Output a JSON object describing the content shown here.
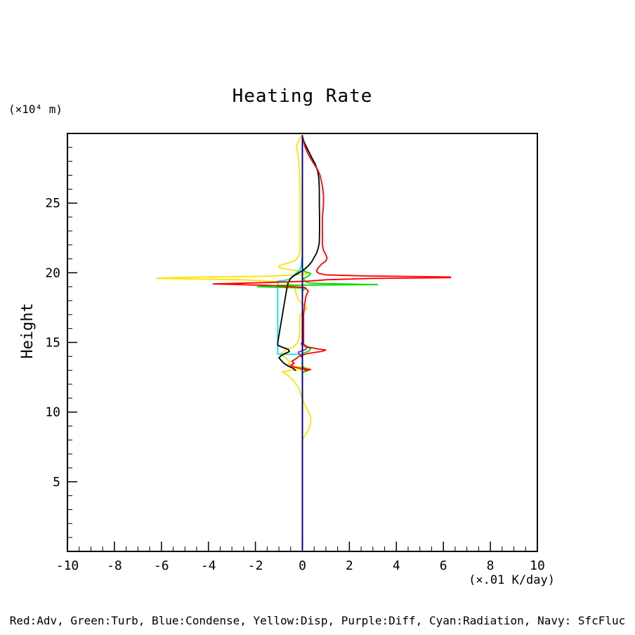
{
  "title": "Heating Rate",
  "y_axis": {
    "label": "Height",
    "unit": "(×10⁴ m)",
    "ticks": [
      5,
      10,
      15,
      20,
      25
    ],
    "range": [
      0,
      30
    ]
  },
  "x_axis": {
    "unit": "(×.01 K/day)",
    "ticks": [
      -10,
      -8,
      -6,
      -4,
      -2,
      0,
      2,
      4,
      6,
      8,
      10
    ],
    "range": [
      -10,
      10
    ]
  },
  "legend": "Red:Adv, Green:Turb, Blue:Condense, Yellow:Disp, Purple:Diff, Cyan:Radiation, Navy: SfcFluc",
  "chart_data": {
    "type": "line",
    "title": "Heating Rate",
    "xlabel": "(×.01 K/day)",
    "ylabel": "Height (×10⁴ m)",
    "xlim": [
      -10,
      10
    ],
    "ylim": [
      0,
      30
    ],
    "grid": false,
    "legend_position": "bottom caption",
    "orientation": "vertical profile: x = heating rate, y = height",
    "x_minor_step": 0.5,
    "y_minor_step": 1,
    "series": [
      {
        "name": "Disp (yellow)",
        "color": "#ffe200",
        "points": [
          [
            8.0,
            0.0
          ],
          [
            8.3,
            0.1
          ],
          [
            8.7,
            0.25
          ],
          [
            9.2,
            0.35
          ],
          [
            9.7,
            0.35
          ],
          [
            10.2,
            0.2
          ],
          [
            10.7,
            0.05
          ],
          [
            11.2,
            -0.05
          ],
          [
            11.7,
            -0.15
          ],
          [
            12.2,
            -0.35
          ],
          [
            12.6,
            -0.6
          ],
          [
            12.9,
            -0.85
          ],
          [
            13.0,
            -0.5
          ],
          [
            13.05,
            0.1
          ],
          [
            13.15,
            0.3
          ],
          [
            13.25,
            -0.2
          ],
          [
            13.4,
            -0.6
          ],
          [
            13.6,
            -0.55
          ],
          [
            13.8,
            -0.65
          ],
          [
            14.0,
            -0.8
          ],
          [
            14.2,
            -0.9
          ],
          [
            14.45,
            -0.7
          ],
          [
            14.7,
            -0.35
          ],
          [
            15.0,
            -0.2
          ],
          [
            15.5,
            -0.12
          ],
          [
            16.0,
            -0.1
          ],
          [
            16.5,
            -0.12
          ],
          [
            17.0,
            -0.1
          ],
          [
            17.2,
            0.05
          ],
          [
            17.45,
            0.2
          ],
          [
            17.7,
            0.05
          ],
          [
            18.0,
            -0.15
          ],
          [
            18.4,
            -0.25
          ],
          [
            18.8,
            -0.3
          ],
          [
            19.1,
            -0.4
          ],
          [
            19.35,
            -0.8
          ],
          [
            19.5,
            -2.5
          ],
          [
            19.6,
            -6.2
          ],
          [
            19.68,
            -5.0
          ],
          [
            19.75,
            -1.5
          ],
          [
            19.85,
            -0.3
          ],
          [
            19.95,
            0.25
          ],
          [
            20.05,
            0.1
          ],
          [
            20.2,
            -0.45
          ],
          [
            20.35,
            -0.95
          ],
          [
            20.5,
            -1.0
          ],
          [
            20.7,
            -0.6
          ],
          [
            20.9,
            -0.3
          ],
          [
            21.2,
            -0.15
          ],
          [
            21.6,
            -0.1
          ],
          [
            22.0,
            -0.1
          ],
          [
            23.0,
            -0.1
          ],
          [
            24.0,
            -0.1
          ],
          [
            25.0,
            -0.1
          ],
          [
            26.0,
            -0.1
          ],
          [
            27.0,
            -0.12
          ],
          [
            28.0,
            -0.15
          ],
          [
            28.6,
            -0.2
          ],
          [
            29.1,
            -0.25
          ],
          [
            29.5,
            -0.15
          ],
          [
            29.8,
            -0.05
          ]
        ]
      },
      {
        "name": "Radiation (cyan)",
        "color": "#00e5e5",
        "points": [
          [
            14.15,
            0.0
          ],
          [
            14.15,
            -1.05
          ],
          [
            19.4,
            -1.05
          ],
          [
            19.45,
            -0.75
          ],
          [
            19.55,
            -0.55
          ],
          [
            19.7,
            -0.45
          ],
          [
            19.85,
            -0.35
          ],
          [
            20.0,
            -0.25
          ],
          [
            20.2,
            -0.12
          ],
          [
            20.5,
            -0.05
          ],
          [
            20.9,
            -0.02
          ],
          [
            21.3,
            0.0
          ]
        ]
      },
      {
        "name": "Diff (purple)",
        "color": "#aa22cc",
        "points": [
          [
            13.9,
            0.0
          ],
          [
            14.1,
            -0.1
          ],
          [
            14.3,
            -0.18
          ],
          [
            14.5,
            0.15
          ],
          [
            14.7,
            0.2
          ],
          [
            14.9,
            -0.05
          ],
          [
            15.1,
            0.05
          ],
          [
            15.4,
            0.0
          ]
        ]
      },
      {
        "name": "Turb (green)",
        "color": "#00dd00",
        "points": [
          [
            12.85,
            0.0
          ],
          [
            12.95,
            0.2
          ],
          [
            13.05,
            0.3
          ],
          [
            13.15,
            0.1
          ],
          [
            13.3,
            0.0
          ],
          [
            14.2,
            0.0
          ],
          [
            14.4,
            0.3
          ],
          [
            14.55,
            0.35
          ],
          [
            14.7,
            0.1
          ],
          [
            14.9,
            0.0
          ],
          [
            18.7,
            0.0
          ],
          [
            18.9,
            0.15
          ],
          [
            19.0,
            -1.9
          ],
          [
            19.1,
            -1.0
          ],
          [
            19.15,
            3.2
          ],
          [
            19.25,
            0.3
          ],
          [
            19.4,
            0.1
          ],
          [
            19.6,
            0.05
          ],
          [
            19.8,
            0.3
          ],
          [
            19.95,
            0.35
          ],
          [
            20.1,
            0.1
          ],
          [
            20.3,
            0.0
          ]
        ]
      },
      {
        "name": "unlabeled total (black)",
        "color": "#000000",
        "points": [
          [
            13.0,
            -0.3
          ],
          [
            13.15,
            -0.4
          ],
          [
            13.3,
            -0.6
          ],
          [
            13.5,
            -0.78
          ],
          [
            13.7,
            -0.9
          ],
          [
            13.9,
            -1.0
          ],
          [
            14.05,
            -0.9
          ],
          [
            14.2,
            -0.75
          ],
          [
            14.35,
            -0.55
          ],
          [
            14.5,
            -0.6
          ],
          [
            14.65,
            -0.85
          ],
          [
            14.8,
            -1.05
          ],
          [
            15.0,
            -1.05
          ],
          [
            15.5,
            -1.0
          ],
          [
            16.0,
            -0.95
          ],
          [
            16.5,
            -0.9
          ],
          [
            17.0,
            -0.85
          ],
          [
            17.5,
            -0.8
          ],
          [
            18.0,
            -0.75
          ],
          [
            18.5,
            -0.7
          ],
          [
            19.0,
            -0.65
          ],
          [
            19.3,
            -0.6
          ],
          [
            19.6,
            -0.5
          ],
          [
            19.8,
            -0.35
          ],
          [
            20.0,
            -0.15
          ],
          [
            20.2,
            0.05
          ],
          [
            20.5,
            0.25
          ],
          [
            20.8,
            0.4
          ],
          [
            21.1,
            0.5
          ],
          [
            21.4,
            0.6
          ],
          [
            21.8,
            0.68
          ],
          [
            22.2,
            0.72
          ],
          [
            23.0,
            0.73
          ],
          [
            24.0,
            0.73
          ],
          [
            25.0,
            0.72
          ],
          [
            26.0,
            0.72
          ],
          [
            26.8,
            0.7
          ],
          [
            27.3,
            0.65
          ],
          [
            27.8,
            0.55
          ],
          [
            28.2,
            0.42
          ],
          [
            28.6,
            0.3
          ],
          [
            29.0,
            0.18
          ],
          [
            29.4,
            0.07
          ],
          [
            29.7,
            0.02
          ]
        ]
      },
      {
        "name": "Adv (red)",
        "color": "#ff0000",
        "points": [
          [
            13.0,
            0.1
          ],
          [
            13.05,
            0.35
          ],
          [
            13.1,
            0.1
          ],
          [
            13.2,
            -0.3
          ],
          [
            13.35,
            -0.5
          ],
          [
            13.5,
            -0.35
          ],
          [
            13.65,
            -0.45
          ],
          [
            13.8,
            -0.3
          ],
          [
            14.0,
            -0.15
          ],
          [
            14.2,
            0.2
          ],
          [
            14.35,
            0.8
          ],
          [
            14.45,
            1.0
          ],
          [
            14.55,
            0.6
          ],
          [
            14.7,
            0.15
          ],
          [
            14.9,
            0.05
          ],
          [
            15.3,
            0.05
          ],
          [
            16.0,
            0.05
          ],
          [
            17.0,
            0.05
          ],
          [
            17.8,
            0.1
          ],
          [
            18.3,
            0.15
          ],
          [
            18.7,
            0.25
          ],
          [
            18.95,
            0.1
          ],
          [
            19.1,
            -1.5
          ],
          [
            19.2,
            -3.8
          ],
          [
            19.3,
            -1.5
          ],
          [
            19.4,
            0.3
          ],
          [
            19.5,
            1.0
          ],
          [
            19.6,
            3.0
          ],
          [
            19.65,
            6.3
          ],
          [
            19.7,
            6.3
          ],
          [
            19.78,
            2.5
          ],
          [
            19.85,
            1.0
          ],
          [
            19.95,
            0.7
          ],
          [
            20.1,
            0.6
          ],
          [
            20.3,
            0.65
          ],
          [
            20.6,
            0.8
          ],
          [
            20.85,
            1.0
          ],
          [
            21.05,
            1.05
          ],
          [
            21.3,
            1.0
          ],
          [
            21.6,
            0.9
          ],
          [
            22.0,
            0.85
          ],
          [
            22.5,
            0.85
          ],
          [
            23.0,
            0.85
          ],
          [
            23.5,
            0.85
          ],
          [
            24.0,
            0.85
          ],
          [
            24.5,
            0.88
          ],
          [
            25.0,
            0.9
          ],
          [
            25.5,
            0.9
          ],
          [
            26.0,
            0.87
          ],
          [
            26.5,
            0.82
          ],
          [
            27.0,
            0.75
          ],
          [
            27.4,
            0.65
          ],
          [
            27.8,
            0.5
          ],
          [
            28.2,
            0.35
          ],
          [
            28.6,
            0.22
          ],
          [
            29.0,
            0.12
          ],
          [
            29.4,
            0.05
          ],
          [
            29.7,
            0.02
          ]
        ]
      },
      {
        "name": "Condense (blue, coincides with zero line)",
        "color": "#0000ff",
        "points": [
          [
            0.15,
            0.0
          ],
          [
            29.85,
            0.0
          ]
        ]
      },
      {
        "name": "SfcFluc (navy, zero line)",
        "color": "#000080",
        "points": [
          [
            0.15,
            0.0
          ],
          [
            29.85,
            0.0
          ]
        ]
      }
    ]
  }
}
